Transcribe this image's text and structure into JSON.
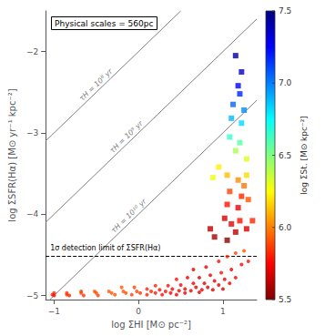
{
  "chart_data": {
    "type": "scatter",
    "title": "Physical scales = 560pc",
    "xlabel": "log ΣHI [M⊙ pc⁻²]",
    "ylabel": "log ΣSFR(Hα) [M⊙ yr⁻¹ kpc⁻²]",
    "xlim": [
      -1.1,
      1.4
    ],
    "ylim": [
      -5.05,
      -1.5
    ],
    "xticks": [
      {
        "value": -1,
        "label": "−1"
      },
      0,
      1
    ],
    "yticks": [
      {
        "value": -5,
        "label": "−5"
      },
      {
        "value": -4,
        "label": "−4"
      },
      {
        "value": -3,
        "label": "−3"
      },
      {
        "value": -2,
        "label": "−2"
      }
    ],
    "grid": false,
    "colorbar_label": "log ΣSt. [M⊙ kpc⁻²]",
    "colorbar_range": [
      5.5,
      7.5
    ],
    "colorbar_ticks": [
      5.5,
      {
        "value": 6,
        "label": "6.0"
      },
      6.5,
      {
        "value": 7,
        "label": "7.0"
      },
      7.5
    ],
    "series": [
      {
        "type": "line",
        "line_style": "solid",
        "color": "gray",
        "label": "τH = 10⁸ yr",
        "x": [
          -1.1,
          0.5
        ],
        "y": [
          -3.1,
          -1.5
        ]
      },
      {
        "type": "line",
        "line_style": "solid",
        "color": "gray",
        "label": "τH = 10⁹ yr",
        "x": [
          -1.1,
          1.4
        ],
        "y": [
          -4.1,
          -1.6
        ]
      },
      {
        "type": "line",
        "line_style": "solid",
        "color": "gray",
        "label": "τH = 10¹⁰ yr",
        "x": [
          -1.05,
          1.4
        ],
        "y": [
          -5.05,
          -2.6
        ]
      },
      {
        "type": "hline",
        "line_style": "dashed",
        "color": "black",
        "label": "1σ detection limit of ΣSFR(Hα)",
        "y": -4.52
      },
      {
        "type": "scatter",
        "marker": "square",
        "x": [
          1.15,
          1.22,
          1.18,
          1.2,
          1.12,
          1.25,
          1.1,
          1.22,
          1.08,
          1.2,
          1.15,
          1.28,
          0.95,
          1.05,
          1.18,
          1.28,
          1.08,
          1.22,
          1.05,
          1.18,
          1.3,
          0.88,
          1.25,
          1.02,
          0.85,
          1.1,
          1.2,
          1.15,
          0.9,
          1.05,
          1.28,
          1.35
        ],
        "y": [
          -2.05,
          -2.25,
          -2.42,
          -2.52,
          -2.65,
          -2.72,
          -2.82,
          -2.88,
          -3.05,
          -3.12,
          -3.22,
          -3.32,
          -3.42,
          -3.52,
          -3.58,
          -3.52,
          -3.72,
          -3.78,
          -3.88,
          -3.92,
          -3.82,
          -3.55,
          -3.65,
          -4.05,
          -4.18,
          -4.12,
          -4.08,
          -4.22,
          -4.28,
          -4.32,
          -4.18,
          -4.08
        ],
        "c": [
          7.45,
          7.35,
          7.25,
          7.18,
          7.05,
          6.98,
          6.88,
          6.82,
          6.65,
          6.58,
          6.42,
          6.32,
          6.22,
          6.12,
          6.02,
          6.18,
          5.88,
          5.82,
          5.78,
          5.72,
          5.92,
          6.28,
          5.98,
          5.68,
          5.62,
          5.72,
          5.78,
          5.62,
          5.58,
          5.52,
          5.68,
          5.82
        ]
      },
      {
        "type": "scatter",
        "marker": "circle",
        "x": [
          1.25,
          1.15,
          1.05,
          0.95,
          0.8,
          0.65,
          1.3,
          1.22,
          1.1,
          0.98,
          0.85,
          0.72,
          0.58,
          0.45,
          1.15,
          1.02,
          0.9,
          0.78,
          0.65,
          0.5,
          0.35,
          0.2,
          1.08,
          0.95,
          0.82,
          0.68,
          0.55,
          0.4,
          0.25,
          0.1,
          -0.05,
          -0.2,
          1.0,
          0.88,
          0.75,
          0.62,
          0.48,
          0.32,
          0.15,
          -0.02,
          -0.18,
          -0.35,
          -0.52,
          -0.68,
          -0.85,
          -1.0,
          0.72,
          0.55,
          0.38,
          0.2,
          0.02,
          -0.15,
          -0.32,
          -0.5,
          -0.68,
          -0.85,
          -1.02,
          0.45,
          0.28,
          0.1,
          -0.08,
          -0.28,
          -0.48,
          -0.65,
          -0.82,
          -1.0
        ],
        "y": [
          -4.45,
          -4.48,
          -4.52,
          -4.58,
          -4.65,
          -4.68,
          -4.58,
          -4.62,
          -4.68,
          -4.72,
          -4.75,
          -4.78,
          -4.78,
          -4.8,
          -4.78,
          -4.8,
          -4.82,
          -4.85,
          -4.85,
          -4.87,
          -4.88,
          -4.88,
          -4.85,
          -4.87,
          -4.9,
          -4.9,
          -4.92,
          -4.92,
          -4.93,
          -4.92,
          -4.9,
          -4.9,
          -4.92,
          -4.93,
          -4.93,
          -4.94,
          -4.94,
          -4.95,
          -4.95,
          -4.95,
          -4.95,
          -4.95,
          -4.95,
          -4.95,
          -4.97,
          -4.97,
          -4.96,
          -4.97,
          -4.97,
          -4.97,
          -4.97,
          -4.97,
          -4.97,
          -4.97,
          -4.97,
          -4.99,
          -4.99,
          -4.99,
          -4.99,
          -4.99,
          -4.99,
          -4.99,
          -5.0,
          -5.0,
          -5.0,
          -5.0
        ],
        "c": [
          5.92,
          5.88,
          5.82,
          5.78,
          5.72,
          5.68,
          5.78,
          5.75,
          5.72,
          5.78,
          5.72,
          5.68,
          5.72,
          5.78,
          5.75,
          5.72,
          5.7,
          5.68,
          5.72,
          5.75,
          5.78,
          5.82,
          5.72,
          5.7,
          5.68,
          5.7,
          5.72,
          5.75,
          5.78,
          5.82,
          5.88,
          5.92,
          5.68,
          5.68,
          5.7,
          5.72,
          5.75,
          5.78,
          5.82,
          5.88,
          5.92,
          5.92,
          5.9,
          5.88,
          5.85,
          5.82,
          5.7,
          5.72,
          5.75,
          5.8,
          5.85,
          5.9,
          5.92,
          5.9,
          5.88,
          5.85,
          5.8,
          5.72,
          5.78,
          5.82,
          5.88,
          5.9,
          5.88,
          5.85,
          5.82,
          5.78
        ]
      }
    ]
  }
}
